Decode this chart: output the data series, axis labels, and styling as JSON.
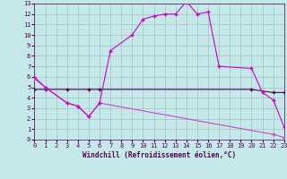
{
  "xlabel": "Windchill (Refroidissement éolien,°C)",
  "bg_color": "#c5e8e8",
  "grid_color": "#9bbaba",
  "line1_x": [
    0,
    1,
    3,
    4,
    5,
    6,
    7,
    9,
    10,
    11,
    12,
    13,
    14,
    15,
    16,
    17,
    20,
    21,
    22,
    23
  ],
  "line1_y": [
    6.0,
    5.0,
    3.5,
    3.2,
    2.2,
    3.5,
    8.5,
    10.0,
    11.5,
    11.8,
    12.0,
    12.0,
    13.2,
    12.0,
    12.2,
    7.0,
    6.8,
    4.5,
    3.8,
    1.2
  ],
  "line2_x": [
    0,
    1,
    3,
    5,
    6,
    20,
    22,
    23
  ],
  "line2_y": [
    4.8,
    4.8,
    4.8,
    4.8,
    4.8,
    4.8,
    4.5,
    4.5
  ],
  "line3_x": [
    0,
    1,
    3,
    4,
    5,
    6,
    22,
    23
  ],
  "line3_y": [
    5.8,
    5.0,
    3.5,
    3.2,
    2.2,
    3.5,
    0.5,
    0.2
  ],
  "line1_color": "#cc00cc",
  "line2_color": "#550055",
  "line3_color": "#cc44cc",
  "xlim": [
    0,
    23
  ],
  "ylim": [
    0,
    13
  ],
  "xticks": [
    0,
    1,
    2,
    3,
    4,
    5,
    6,
    7,
    8,
    9,
    10,
    11,
    12,
    13,
    14,
    15,
    16,
    17,
    18,
    19,
    20,
    21,
    22,
    23
  ],
  "yticks": [
    0,
    1,
    2,
    3,
    4,
    5,
    6,
    7,
    8,
    9,
    10,
    11,
    12,
    13
  ],
  "tick_fontsize": 5,
  "xlabel_fontsize": 5.5,
  "marker": "+",
  "markersize": 3,
  "linewidth": 0.8
}
